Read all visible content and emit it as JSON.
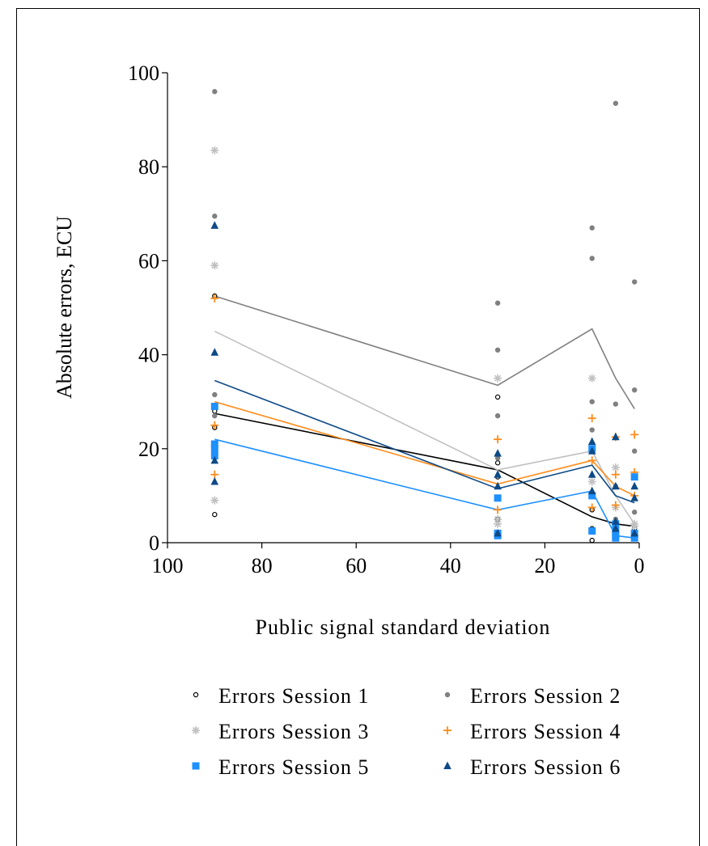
{
  "chart_data": {
    "type": "scatter",
    "xlabel": "Public signal standard deviation",
    "ylabel": "Absolute errors, ECU",
    "xlim": [
      100,
      0
    ],
    "ylim": [
      0,
      100
    ],
    "x_reversed": true,
    "xticks": [
      100,
      80,
      60,
      40,
      20,
      0
    ],
    "yticks": [
      0,
      20,
      40,
      60,
      80,
      100
    ],
    "xtick_labels": [
      "100",
      "80",
      "60",
      "40",
      "20",
      "0"
    ],
    "ytick_labels": [
      "0",
      "20",
      "40",
      "60",
      "80",
      "100"
    ],
    "grid": false,
    "legend_position": "bottom",
    "series": [
      {
        "name": "Errors Session 1",
        "marker": "open-circle",
        "color": "#000000",
        "points": [
          [
            90,
            52.5
          ],
          [
            90,
            28
          ],
          [
            90,
            24.5
          ],
          [
            90,
            6
          ],
          [
            30,
            31
          ],
          [
            30,
            17
          ],
          [
            30,
            14
          ],
          [
            30,
            5
          ],
          [
            30,
            2
          ],
          [
            10,
            7
          ],
          [
            10,
            3
          ],
          [
            10,
            0.5
          ],
          [
            5,
            4
          ],
          [
            5,
            3
          ],
          [
            5,
            2
          ],
          [
            1,
            3
          ],
          [
            1,
            2
          ],
          [
            1,
            1
          ]
        ],
        "line": [
          [
            90,
            27.5
          ],
          [
            30,
            15.5
          ],
          [
            10,
            5.5
          ],
          [
            5,
            4
          ],
          [
            1,
            3.5
          ]
        ]
      },
      {
        "name": "Errors Session 2",
        "marker": "filled-circle",
        "color": "#808080",
        "points": [
          [
            90,
            96
          ],
          [
            90,
            69.5
          ],
          [
            90,
            31.5
          ],
          [
            90,
            27
          ],
          [
            30,
            51
          ],
          [
            30,
            41
          ],
          [
            30,
            27
          ],
          [
            30,
            18
          ],
          [
            10,
            67
          ],
          [
            10,
            60.5
          ],
          [
            10,
            30
          ],
          [
            10,
            24
          ],
          [
            5,
            93.5
          ],
          [
            5,
            29.5
          ],
          [
            5,
            12
          ],
          [
            5,
            5
          ],
          [
            1,
            55.5
          ],
          [
            1,
            32.5
          ],
          [
            1,
            19.5
          ],
          [
            1,
            6.5
          ]
        ],
        "line": [
          [
            90,
            52.5
          ],
          [
            30,
            33.5
          ],
          [
            10,
            45.5
          ],
          [
            5,
            35
          ],
          [
            1,
            28.5
          ]
        ]
      },
      {
        "name": "Errors Session 3",
        "marker": "asterisk",
        "color": "#c0c0c0",
        "points": [
          [
            90,
            83.5
          ],
          [
            90,
            59
          ],
          [
            90,
            9
          ],
          [
            30,
            35
          ],
          [
            30,
            5
          ],
          [
            30,
            4
          ],
          [
            10,
            35
          ],
          [
            10,
            13
          ],
          [
            5,
            16
          ],
          [
            5,
            7.5
          ],
          [
            1,
            4
          ],
          [
            1,
            3.5
          ]
        ],
        "line": [
          [
            90,
            45
          ],
          [
            30,
            15.5
          ],
          [
            10,
            19.5
          ],
          [
            5,
            10
          ],
          [
            1,
            4
          ]
        ]
      },
      {
        "name": "Errors Session 4",
        "marker": "plus",
        "color": "#ff8c1a",
        "points": [
          [
            90,
            52
          ],
          [
            90,
            25
          ],
          [
            90,
            14.5
          ],
          [
            30,
            22
          ],
          [
            30,
            7
          ],
          [
            10,
            26.5
          ],
          [
            10,
            17.5
          ],
          [
            10,
            7.5
          ],
          [
            5,
            22.5
          ],
          [
            5,
            14.5
          ],
          [
            5,
            8
          ],
          [
            1,
            23
          ],
          [
            1,
            15
          ],
          [
            1,
            10
          ]
        ],
        "line": [
          [
            90,
            30
          ],
          [
            30,
            12.5
          ],
          [
            10,
            17.5
          ],
          [
            5,
            12
          ],
          [
            1,
            10
          ]
        ]
      },
      {
        "name": "Errors Session 5",
        "marker": "filled-square",
        "color": "#1e90ff",
        "points": [
          [
            90,
            29
          ],
          [
            90,
            21
          ],
          [
            90,
            20
          ],
          [
            90,
            18.5
          ],
          [
            30,
            9.5
          ],
          [
            30,
            2
          ],
          [
            30,
            1.5
          ],
          [
            10,
            20
          ],
          [
            10,
            10
          ],
          [
            10,
            2.5
          ],
          [
            5,
            4
          ],
          [
            5,
            2.5
          ],
          [
            5,
            1.5
          ],
          [
            5,
            1
          ],
          [
            1,
            14
          ],
          [
            1,
            2
          ],
          [
            1,
            1
          ]
        ],
        "line": [
          [
            90,
            22
          ],
          [
            30,
            7
          ],
          [
            10,
            11
          ],
          [
            5,
            1.5
          ],
          [
            1,
            1
          ]
        ]
      },
      {
        "name": "Errors Session 6",
        "marker": "filled-triangle",
        "color": "#0d4a86",
        "points": [
          [
            90,
            67.5
          ],
          [
            90,
            40.5
          ],
          [
            90,
            17.5
          ],
          [
            90,
            13
          ],
          [
            30,
            19
          ],
          [
            30,
            14.5
          ],
          [
            30,
            12
          ],
          [
            30,
            2
          ],
          [
            10,
            21.5
          ],
          [
            10,
            19.5
          ],
          [
            10,
            14.5
          ],
          [
            10,
            11
          ],
          [
            5,
            22.5
          ],
          [
            5,
            12
          ],
          [
            5,
            4.5
          ],
          [
            5,
            3
          ],
          [
            1,
            12
          ],
          [
            1,
            9.5
          ],
          [
            1,
            2
          ]
        ],
        "line": [
          [
            90,
            34.5
          ],
          [
            30,
            11.5
          ],
          [
            10,
            16.5
          ],
          [
            5,
            10
          ],
          [
            1,
            8.5
          ]
        ]
      }
    ]
  }
}
